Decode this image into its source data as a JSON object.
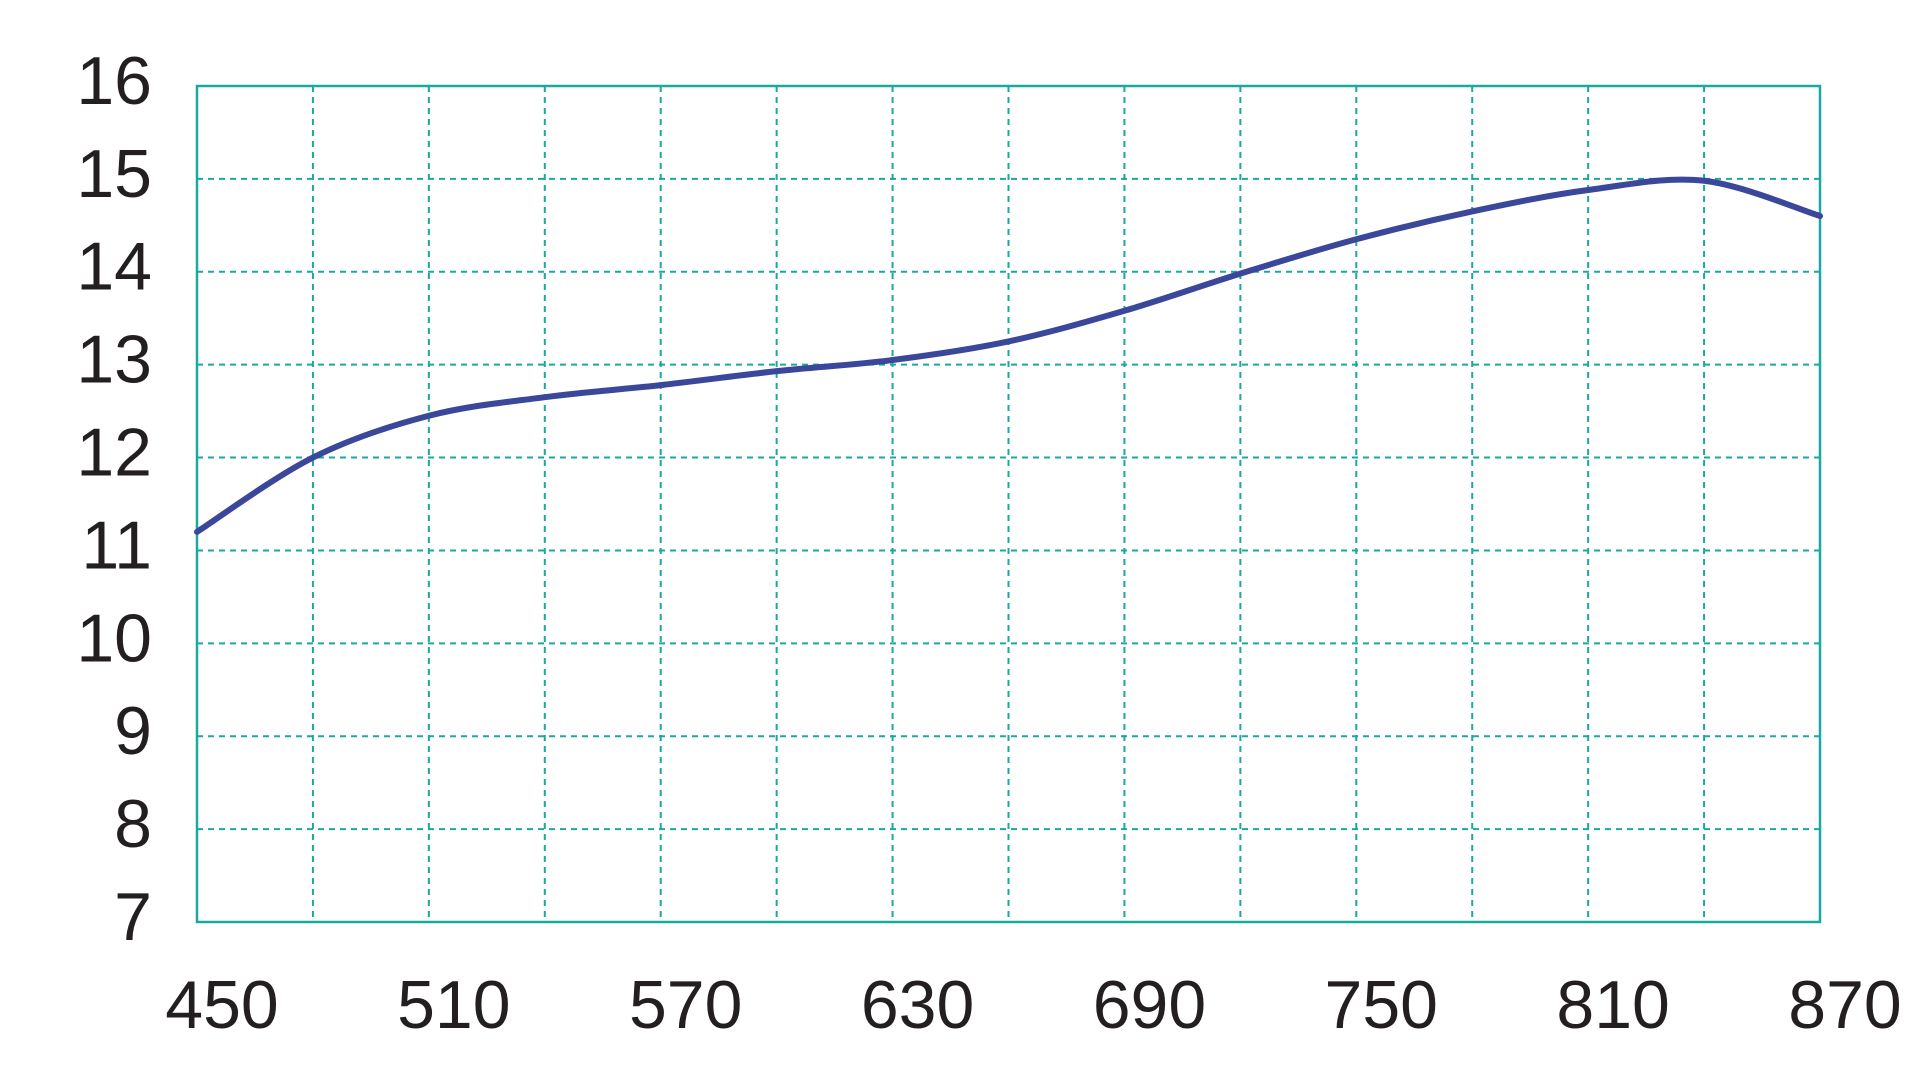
{
  "chart_data": {
    "type": "line",
    "x": [
      450,
      480,
      510,
      540,
      570,
      600,
      630,
      660,
      690,
      720,
      750,
      780,
      810,
      840,
      870
    ],
    "series": [
      {
        "color": "#3a479b",
        "values": [
          11.2,
          12.0,
          12.45,
          12.65,
          12.78,
          12.93,
          13.05,
          13.25,
          13.58,
          13.98,
          14.35,
          14.65,
          14.88,
          14.98,
          14.6
        ]
      }
    ],
    "xlim": [
      450,
      870
    ],
    "xticks": [
      450,
      510,
      570,
      630,
      690,
      750,
      810,
      870
    ],
    "xminorticks": [
      480,
      540,
      600,
      660,
      720,
      780,
      840
    ],
    "ylim": [
      7,
      16
    ],
    "yticks": [
      7,
      8,
      9,
      10,
      11,
      12,
      13,
      14,
      15,
      16
    ],
    "grid": true,
    "grid_color": "#1aa9a0"
  }
}
